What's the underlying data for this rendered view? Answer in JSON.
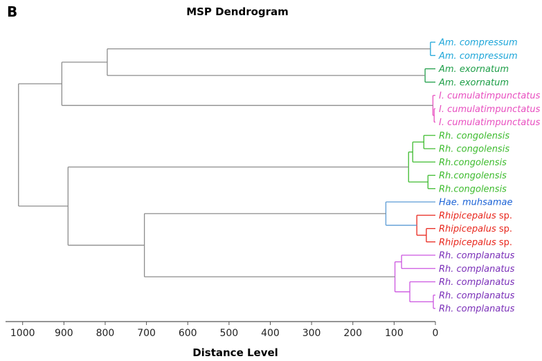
{
  "panel_label": "B",
  "chart_data": {
    "type": "dendrogram",
    "title": "MSP Dendrogram",
    "xlabel": "Distance Level",
    "x_reversed": true,
    "xlim": [
      1050,
      0
    ],
    "x_ticks": [
      1000,
      900,
      800,
      700,
      600,
      500,
      400,
      300,
      200,
      100,
      0
    ],
    "leaves": [
      {
        "id": "L1",
        "genus": "Am.",
        "species": "compressum",
        "suffix": "",
        "color": "#1ea6d9"
      },
      {
        "id": "L2",
        "genus": "Am.",
        "species": "compressum",
        "suffix": "",
        "color": "#1ea6d9"
      },
      {
        "id": "L3",
        "genus": "Am.",
        "species": "exornatum",
        "suffix": "",
        "color": "#1e9e48"
      },
      {
        "id": "L4",
        "genus": "Am.",
        "species": "exornatum",
        "suffix": "",
        "color": "#1e9e48"
      },
      {
        "id": "L5",
        "genus": "I.",
        "species": "cumulatimpunctatus",
        "suffix": "",
        "color": "#e84fc0"
      },
      {
        "id": "L6",
        "genus": "I.",
        "species": "cumulatimpunctatus",
        "suffix": "",
        "color": "#e84fc0"
      },
      {
        "id": "L7",
        "genus": "I.",
        "species": "cumulatimpunctatus",
        "suffix": "",
        "color": "#e84fc0"
      },
      {
        "id": "L8",
        "genus": "Rh.",
        "species": "congolensis",
        "suffix": "",
        "color": "#3dbb2e"
      },
      {
        "id": "L9",
        "genus": "Rh.",
        "species": "congolensis",
        "suffix": "",
        "color": "#3dbb2e"
      },
      {
        "id": "L10",
        "genus": "Rh.",
        "species": "congolensis",
        "suffix": "",
        "color": "#3dbb2e",
        "nospace": true
      },
      {
        "id": "L11",
        "genus": "Rh.",
        "species": "congolensis",
        "suffix": "",
        "color": "#3dbb2e",
        "nospace": true
      },
      {
        "id": "L12",
        "genus": "Rh.",
        "species": "congolensis",
        "suffix": "",
        "color": "#3dbb2e",
        "nospace": true
      },
      {
        "id": "L13",
        "genus": "Hae.",
        "species": "muhsamae",
        "suffix": "",
        "color": "#1c63d6"
      },
      {
        "id": "L14",
        "genus": "",
        "species": "Rhipicepalus",
        "suffix": " sp.",
        "color": "#e8261c"
      },
      {
        "id": "L15",
        "genus": "",
        "species": "Rhipicepalus",
        "suffix": " sp.",
        "color": "#e8261c"
      },
      {
        "id": "L16",
        "genus": "",
        "species": "Rhipicepalus",
        "suffix": " sp.",
        "color": "#e8261c"
      },
      {
        "id": "L17",
        "genus": "Rh.",
        "species": "complanatus",
        "suffix": "",
        "color": "#7a2fb8"
      },
      {
        "id": "L18",
        "genus": "Rh.",
        "species": "complanatus",
        "suffix": "",
        "color": "#7a2fb8"
      },
      {
        "id": "L19",
        "genus": "Rh.",
        "species": "complanatus",
        "suffix": "",
        "color": "#7a2fb8"
      },
      {
        "id": "L20",
        "genus": "Rh.",
        "species": "complanatus",
        "suffix": "",
        "color": "#7a2fb8"
      },
      {
        "id": "L21",
        "genus": "Rh.",
        "species": "complanatus",
        "suffix": "",
        "color": "#7a2fb8"
      }
    ],
    "merges": [
      {
        "id": "N1",
        "children": [
          "L1",
          "L2"
        ],
        "distance": 12,
        "color": "#1ea6d9"
      },
      {
        "id": "N2",
        "children": [
          "L3",
          "L4"
        ],
        "distance": 25,
        "color": "#1e9e48"
      },
      {
        "id": "N3",
        "children": [
          "L6",
          "L7"
        ],
        "distance": 3,
        "color": "#e84fc0"
      },
      {
        "id": "N4",
        "children": [
          "L5",
          "N3"
        ],
        "distance": 6,
        "color": "#e84fc0"
      },
      {
        "id": "N5",
        "children": [
          "L8",
          "L9"
        ],
        "distance": 28,
        "color": "#3dbb2e"
      },
      {
        "id": "N6",
        "children": [
          "N5",
          "L10"
        ],
        "distance": 55,
        "color": "#3dbb2e"
      },
      {
        "id": "N7",
        "children": [
          "L11",
          "L12"
        ],
        "distance": 18,
        "color": "#3dbb2e"
      },
      {
        "id": "N8",
        "children": [
          "N6",
          "N7"
        ],
        "distance": 65,
        "color": "#3dbb2e"
      },
      {
        "id": "N9",
        "children": [
          "L15",
          "L16"
        ],
        "distance": 22,
        "color": "#e8261c"
      },
      {
        "id": "N10",
        "children": [
          "L14",
          "N9"
        ],
        "distance": 45,
        "color": "#e8261c"
      },
      {
        "id": "N11",
        "children": [
          "L13",
          "N10"
        ],
        "distance": 120,
        "color": "#5b9bd5"
      },
      {
        "id": "N12",
        "children": [
          "L17",
          "L18"
        ],
        "distance": 82,
        "color": "#cc55e0"
      },
      {
        "id": "N13",
        "children": [
          "L20",
          "L21"
        ],
        "distance": 5,
        "color": "#cc55e0"
      },
      {
        "id": "N14",
        "children": [
          "L19",
          "N13"
        ],
        "distance": 62,
        "color": "#cc55e0"
      },
      {
        "id": "N15",
        "children": [
          "N12",
          "N14"
        ],
        "distance": 98,
        "color": "#cc55e0"
      },
      {
        "id": "N16",
        "children": [
          "N1",
          "N2"
        ],
        "distance": 795,
        "color": "#8c8c8c"
      },
      {
        "id": "N17",
        "children": [
          "N16",
          "N4"
        ],
        "distance": 905,
        "color": "#8c8c8c"
      },
      {
        "id": "N18",
        "children": [
          "N11",
          "N15"
        ],
        "distance": 705,
        "color": "#8c8c8c"
      },
      {
        "id": "N19",
        "children": [
          "N8",
          "N18"
        ],
        "distance": 890,
        "color": "#8c8c8c"
      },
      {
        "id": "N20",
        "children": [
          "N17",
          "N19"
        ],
        "distance": 1010,
        "color": "#8c8c8c"
      }
    ]
  }
}
